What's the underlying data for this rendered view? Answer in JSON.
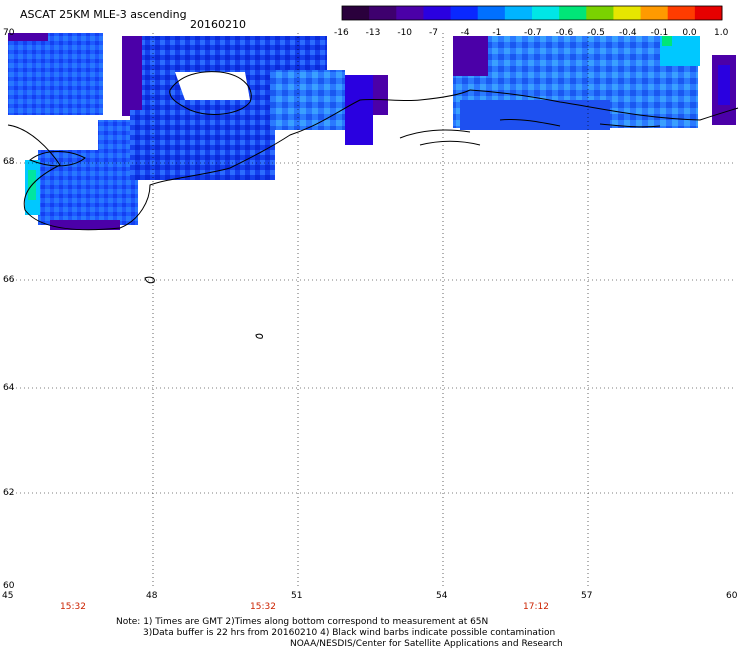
{
  "header": {
    "title": "ASCAT 25KM MLE-3 ascending",
    "date": "20160210"
  },
  "colorbar": {
    "labels": [
      "-16",
      "-13",
      "-10",
      "-7",
      "-4",
      "-1",
      "-0.7",
      "-0.6",
      "-0.5",
      "-0.4",
      "-0.1",
      "0.0",
      "1.0"
    ],
    "colors": [
      "#2a003c",
      "#3e006e",
      "#4b00a8",
      "#2a00e0",
      "#0a28ff",
      "#0070ff",
      "#00b4ff",
      "#00e6e6",
      "#00e678",
      "#7ad200",
      "#e6e600",
      "#ff9a00",
      "#ff3c00",
      "#e60000"
    ]
  },
  "axes": {
    "lat_labels": [
      "70",
      "68",
      "66",
      "64",
      "62",
      "60"
    ],
    "lon_labels": [
      "45",
      "48",
      "51",
      "54",
      "57",
      "60"
    ]
  },
  "pass_times": [
    "15:32",
    "15:32",
    "17:12"
  ],
  "notes": [
    "Note: 1) Times are GMT 2)Times along bottom correspond to measurement at 65N",
    "3)Data buffer is 22 hrs from 20160210 4) Black wind barbs indicate possible contamination",
    "NOAA/NESDIS/Center for Satellite Applications and Research"
  ]
}
